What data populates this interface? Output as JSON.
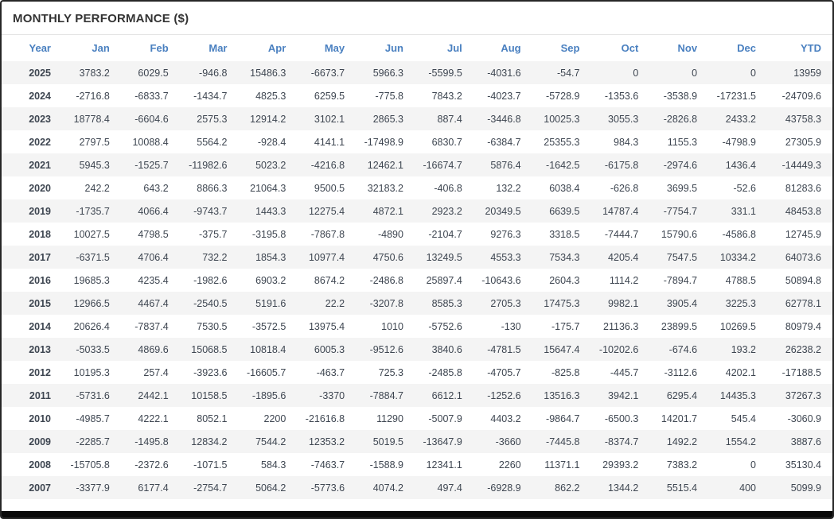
{
  "title": "MONTHLY PERFORMANCE ($)",
  "colors": {
    "title_text": "#333333",
    "header_text": "#4a80c0",
    "positive_text": "#3e4651",
    "negative_text": "#f86c6b",
    "stripe_bg": "#f4f4f4",
    "bottom_bar": "#0a0a0a"
  },
  "chart_data": {
    "type": "table",
    "title": "MONTHLY PERFORMANCE ($)",
    "columns": [
      "Year",
      "Jan",
      "Feb",
      "Mar",
      "Apr",
      "May",
      "Jun",
      "Jul",
      "Aug",
      "Sep",
      "Oct",
      "Nov",
      "Dec",
      "YTD"
    ],
    "rows": [
      {
        "year": "2025",
        "values": [
          3783.2,
          6029.5,
          -946.8,
          15486.3,
          -6673.7,
          5966.3,
          -5599.5,
          -4031.6,
          -54.7,
          0,
          0,
          0,
          13959
        ]
      },
      {
        "year": "2024",
        "values": [
          -2716.8,
          -6833.7,
          -1434.7,
          4825.3,
          6259.5,
          -775.8,
          7843.2,
          -4023.7,
          -5728.9,
          -1353.6,
          -3538.9,
          -17231.5,
          -24709.6
        ]
      },
      {
        "year": "2023",
        "values": [
          18778.4,
          -6604.6,
          2575.3,
          12914.2,
          3102.1,
          2865.3,
          887.4,
          -3446.8,
          10025.3,
          3055.3,
          -2826.8,
          2433.2,
          43758.3
        ]
      },
      {
        "year": "2022",
        "values": [
          2797.5,
          10088.4,
          5564.2,
          -928.4,
          4141.1,
          -17498.9,
          6830.7,
          -6384.7,
          25355.3,
          984.3,
          1155.3,
          -4798.9,
          27305.9
        ]
      },
      {
        "year": "2021",
        "values": [
          5945.3,
          -1525.7,
          -11982.6,
          5023.2,
          -4216.8,
          12462.1,
          -16674.7,
          5876.4,
          -1642.5,
          -6175.8,
          -2974.6,
          1436.4,
          -14449.3
        ]
      },
      {
        "year": "2020",
        "values": [
          242.2,
          643.2,
          8866.3,
          21064.3,
          9500.5,
          32183.2,
          -406.8,
          132.2,
          6038.4,
          -626.8,
          3699.5,
          -52.6,
          81283.6
        ]
      },
      {
        "year": "2019",
        "values": [
          -1735.7,
          4066.4,
          -9743.7,
          1443.3,
          12275.4,
          4872.1,
          2923.2,
          20349.5,
          6639.5,
          14787.4,
          -7754.7,
          331.1,
          48453.8
        ]
      },
      {
        "year": "2018",
        "values": [
          10027.5,
          4798.5,
          -375.7,
          -3195.8,
          -7867.8,
          -4890,
          -2104.7,
          9276.3,
          3318.5,
          -7444.7,
          15790.6,
          -4586.8,
          12745.9
        ]
      },
      {
        "year": "2017",
        "values": [
          -6371.5,
          4706.4,
          732.2,
          1854.3,
          10977.4,
          4750.6,
          13249.5,
          4553.3,
          7534.3,
          4205.4,
          7547.5,
          10334.2,
          64073.6
        ]
      },
      {
        "year": "2016",
        "values": [
          19685.3,
          4235.4,
          -1982.6,
          6903.2,
          8674.2,
          -2486.8,
          25897.4,
          -10643.6,
          2604.3,
          1114.2,
          -7894.7,
          4788.5,
          50894.8
        ]
      },
      {
        "year": "2015",
        "values": [
          12966.5,
          4467.4,
          -2540.5,
          5191.6,
          22.2,
          -3207.8,
          8585.3,
          2705.3,
          17475.3,
          9982.1,
          3905.4,
          3225.3,
          62778.1
        ]
      },
      {
        "year": "2014",
        "values": [
          20626.4,
          -7837.4,
          7530.5,
          -3572.5,
          13975.4,
          1010,
          -5752.6,
          -130,
          -175.7,
          21136.3,
          23899.5,
          10269.5,
          80979.4
        ]
      },
      {
        "year": "2013",
        "values": [
          -5033.5,
          4869.6,
          15068.5,
          10818.4,
          6005.3,
          -9512.6,
          3840.6,
          -4781.5,
          15647.4,
          -10202.6,
          -674.6,
          193.2,
          26238.2
        ]
      },
      {
        "year": "2012",
        "values": [
          10195.3,
          257.4,
          -3923.6,
          -16605.7,
          -463.7,
          725.3,
          -2485.8,
          -4705.7,
          -825.8,
          -445.7,
          -3112.6,
          4202.1,
          -17188.5
        ]
      },
      {
        "year": "2011",
        "values": [
          -5731.6,
          2442.1,
          10158.5,
          -1895.6,
          -3370,
          -7884.7,
          6612.1,
          -1252.6,
          13516.3,
          3942.1,
          6295.4,
          14435.3,
          37267.3
        ]
      },
      {
        "year": "2010",
        "values": [
          -4985.7,
          4222.1,
          8052.1,
          2200,
          -21616.8,
          11290,
          -5007.9,
          4403.2,
          -9864.7,
          -6500.3,
          14201.7,
          545.4,
          -3060.9
        ]
      },
      {
        "year": "2009",
        "values": [
          -2285.7,
          -1495.8,
          12834.2,
          7544.2,
          12353.2,
          5019.5,
          -13647.9,
          -3660,
          -7445.8,
          -8374.7,
          1492.2,
          1554.2,
          3887.6
        ]
      },
      {
        "year": "2008",
        "values": [
          -15705.8,
          -2372.6,
          -1071.5,
          584.3,
          -7463.7,
          -1588.9,
          12341.1,
          2260,
          11371.1,
          29393.2,
          7383.2,
          0,
          35130.4
        ]
      },
      {
        "year": "2007",
        "values": [
          -3377.9,
          6177.4,
          -2754.7,
          5064.2,
          -5773.6,
          4074.2,
          497.4,
          -6928.9,
          862.2,
          1344.2,
          5515.4,
          400,
          5099.9
        ]
      }
    ]
  }
}
